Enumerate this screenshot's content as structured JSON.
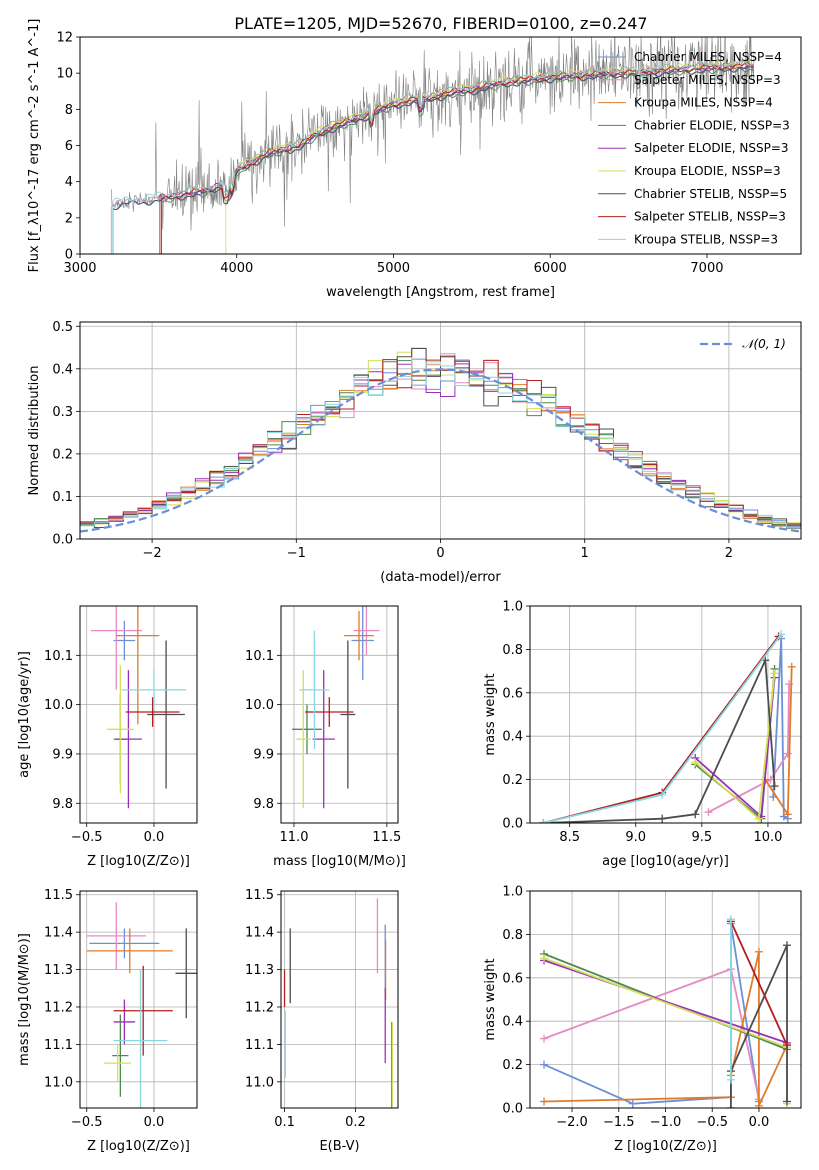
{
  "title": "PLATE=1205, MJD=52670, FIBERID=0100, z=0.247",
  "colors": {
    "Chabrier MILES": "#6d8fd6",
    "Salpeter MILES": "#e68ac3",
    "Kroupa MILES": "#e07b2c",
    "Chabrier ELODIE": "#4e8a4e",
    "Salpeter ELODIE": "#9b30b8",
    "Kroupa ELODIE": "#d4e05a",
    "Chabrier STELIB": "#4d4d4d",
    "Salpeter STELIB": "#b21e1e",
    "Kroupa STELIB": "#88d8e0",
    "normal": "#6a8fd8",
    "data_spectrum": "#808080"
  },
  "chart_data": [
    {
      "type": "line",
      "id": "spectrum",
      "xlabel": "wavelength [Angstrom, rest frame]",
      "ylabel": "Flux [f_λ10^-17 erg cm^-2 s^-1 A^-1]",
      "xlim": [
        3000,
        7600
      ],
      "ylim": [
        0,
        12
      ],
      "xticks": [
        "3000",
        "4000",
        "5000",
        "6000",
        "7000"
      ],
      "yticks": [
        "0",
        "2",
        "4",
        "6",
        "8",
        "10",
        "12"
      ],
      "grid": false,
      "legend_position": "top-right",
      "legend": [
        "Chabrier MILES, NSSP=4",
        "Salpeter MILES, NSSP=3",
        "Kroupa MILES, NSSP=4",
        "Chabrier ELODIE, NSSP=3",
        "Salpeter ELODIE, NSSP=3",
        "Kroupa ELODIE, NSSP=3",
        "Chabrier STELIB, NSSP=5",
        "Salpeter STELIB, NSSP=3",
        "Kroupa STELIB, NSSP=3"
      ],
      "model_continuum": {
        "x": [
          3200,
          3300,
          3400,
          3500,
          3600,
          3700,
          3800,
          3900,
          3950,
          4000,
          4100,
          4200,
          4300,
          4400,
          4500,
          4600,
          4700,
          4800,
          4900,
          5000,
          5100,
          5200,
          5300,
          5400,
          5500,
          5600,
          5700,
          5800,
          5900,
          6000,
          6200,
          6400,
          6600,
          6800,
          7000,
          7200,
          7300
        ],
        "y": [
          2.7,
          2.9,
          3.0,
          3.1,
          3.2,
          3.4,
          3.5,
          3.8,
          3.6,
          4.6,
          5.1,
          5.6,
          5.8,
          6.0,
          6.6,
          7.0,
          7.3,
          7.6,
          8.0,
          8.3,
          8.5,
          8.6,
          8.8,
          9.0,
          9.1,
          9.3,
          9.5,
          9.6,
          9.7,
          9.8,
          9.9,
          10.0,
          10.1,
          10.2,
          10.3,
          10.4,
          10.4
        ]
      }
    },
    {
      "type": "line",
      "id": "residuals",
      "xlabel": "(data-model)/error",
      "ylabel": "Normed distribution",
      "xlim": [
        -2.5,
        2.5
      ],
      "ylim": [
        0,
        0.51
      ],
      "xticks": [
        "−2",
        "−1",
        "0",
        "1",
        "2"
      ],
      "yticks": [
        "0.0",
        "0.1",
        "0.2",
        "0.3",
        "0.4",
        "0.5"
      ],
      "grid": true,
      "legend_position": "top-right",
      "legend": [
        "𝒩(0, 1)"
      ]
    },
    {
      "type": "scatter",
      "id": "age-vs-z",
      "xlabel": "Z [log10(Z/Z⊙)]",
      "ylabel": "age [log10(age/yr)]",
      "xlim": [
        -0.55,
        0.32
      ],
      "ylim": [
        9.76,
        10.2
      ],
      "xticks": [
        "−0.5",
        "0.0"
      ],
      "yticks": [
        "9.8",
        "9.9",
        "10.0",
        "10.1"
      ],
      "grid": true,
      "points": [
        {
          "series": "Chabrier MILES",
          "x": -0.22,
          "xerr": 0.08,
          "y": 10.13,
          "yerr": 0.04
        },
        {
          "series": "Salpeter MILES",
          "x": -0.28,
          "xerr": 0.19,
          "y": 10.15,
          "yerr": 0.12
        },
        {
          "series": "Kroupa MILES",
          "x": -0.12,
          "xerr": 0.16,
          "y": 10.14,
          "yerr": 0.18
        },
        {
          "series": "Chabrier ELODIE",
          "x": -0.25,
          "xerr": 0.05,
          "y": 9.93,
          "yerr": 0.09
        },
        {
          "series": "Salpeter ELODIE",
          "x": -0.19,
          "xerr": 0.1,
          "y": 9.93,
          "yerr": 0.14
        },
        {
          "series": "Kroupa ELODIE",
          "x": -0.25,
          "xerr": 0.1,
          "y": 9.95,
          "yerr": 0.13
        },
        {
          "series": "Chabrier STELIB",
          "x": 0.09,
          "xerr": 0.14,
          "y": 9.98,
          "yerr": 0.15
        },
        {
          "series": "Salpeter STELIB",
          "x": -0.01,
          "xerr": 0.2,
          "y": 9.985,
          "yerr": 0.03
        },
        {
          "series": "Kroupa STELIB",
          "x": 0.0,
          "xerr": 0.24,
          "y": 10.03,
          "yerr": 0.04
        }
      ]
    },
    {
      "type": "scatter",
      "id": "age-vs-mass",
      "xlabel": "mass [log10(M/M⊙)]",
      "ylabel": "",
      "xlim": [
        10.93,
        11.56
      ],
      "ylim": [
        9.76,
        10.2
      ],
      "xticks": [
        "11.0",
        "11.5"
      ],
      "yticks": [
        "9.8",
        "9.9",
        "10.0",
        "10.1"
      ],
      "grid": true,
      "points": [
        {
          "series": "Chabrier MILES",
          "x": 11.37,
          "xerr": 0.06,
          "y": 10.13,
          "yerr": 0.08
        },
        {
          "series": "Salpeter MILES",
          "x": 11.39,
          "xerr": 0.07,
          "y": 10.15,
          "yerr": 0.05
        },
        {
          "series": "Kroupa MILES",
          "x": 11.35,
          "xerr": 0.08,
          "y": 10.14,
          "yerr": 0.05
        },
        {
          "series": "Chabrier ELODIE",
          "x": 11.07,
          "xerr": 0.08,
          "y": 9.95,
          "yerr": 0.05
        },
        {
          "series": "Salpeter ELODIE",
          "x": 11.16,
          "xerr": 0.06,
          "y": 9.93,
          "yerr": 0.14
        },
        {
          "series": "Kroupa ELODIE",
          "x": 11.05,
          "xerr": 0.04,
          "y": 9.93,
          "yerr": 0.14
        },
        {
          "series": "Chabrier STELIB",
          "x": 11.29,
          "xerr": 0.04,
          "y": 9.98,
          "yerr": 0.15
        },
        {
          "series": "Salpeter STELIB",
          "x": 11.19,
          "xerr": 0.13,
          "y": 9.985,
          "yerr": 0.03
        },
        {
          "series": "Kroupa STELIB",
          "x": 11.11,
          "xerr": 0.08,
          "y": 10.03,
          "yerr": 0.12
        }
      ]
    },
    {
      "type": "line",
      "id": "weight-vs-age",
      "xlabel": "age [log10(age/yr)]",
      "ylabel": "mass weight",
      "xlim": [
        8.2,
        10.25
      ],
      "ylim": [
        0,
        1
      ],
      "xticks": [
        "8.5",
        "9.0",
        "9.5",
        "10.0"
      ],
      "yticks": [
        "0.0",
        "0.2",
        "0.4",
        "0.6",
        "0.8",
        "1.0"
      ],
      "grid": true,
      "series": [
        {
          "name": "Chabrier MILES",
          "x": [
            10.04,
            10.1,
            10.12,
            10.15
          ],
          "y": [
            0.12,
            0.85,
            0.03,
            0.02
          ]
        },
        {
          "name": "Salpeter MILES",
          "x": [
            9.55,
            10.02,
            10.15,
            10.16
          ],
          "y": [
            0.05,
            0.2,
            0.32,
            0.64
          ]
        },
        {
          "name": "Kroupa MILES",
          "x": [
            9.98,
            10.15,
            10.18
          ],
          "y": [
            0.2,
            0.04,
            0.72
          ]
        },
        {
          "name": "Chabrier ELODIE",
          "x": [
            9.45,
            9.95,
            10.05
          ],
          "y": [
            0.27,
            0.02,
            0.71
          ]
        },
        {
          "name": "Salpeter ELODIE",
          "x": [
            9.45,
            9.95,
            10.05
          ],
          "y": [
            0.3,
            0.03,
            0.67
          ]
        },
        {
          "name": "Kroupa ELODIE",
          "x": [
            9.45,
            9.93,
            10.05
          ],
          "y": [
            0.28,
            0.02,
            0.69
          ]
        },
        {
          "name": "Chabrier STELIB",
          "x": [
            8.3,
            9.2,
            9.45,
            9.98,
            10.05
          ],
          "y": [
            0.0,
            0.02,
            0.04,
            0.75,
            0.17
          ]
        },
        {
          "name": "Salpeter STELIB",
          "x": [
            8.3,
            9.2,
            10.08
          ],
          "y": [
            0.0,
            0.14,
            0.86
          ]
        },
        {
          "name": "Kroupa STELIB",
          "x": [
            8.3,
            9.2,
            10.1
          ],
          "y": [
            0.0,
            0.13,
            0.87
          ]
        }
      ]
    },
    {
      "type": "scatter",
      "id": "mass-vs-z",
      "xlabel": "Z [log10(Z/Z⊙)]",
      "ylabel": "mass [log10(M/M⊙)]",
      "xlim": [
        -0.55,
        0.32
      ],
      "ylim": [
        10.93,
        11.51
      ],
      "xticks": [
        "−0.5",
        "0.0"
      ],
      "yticks": [
        "11.0",
        "11.1",
        "11.2",
        "11.3",
        "11.4",
        "11.5"
      ],
      "grid": true,
      "points": [
        {
          "series": "Chabrier MILES",
          "x": -0.22,
          "xerr": 0.26,
          "y": 11.37,
          "yerr": 0.04
        },
        {
          "series": "Salpeter MILES",
          "x": -0.28,
          "xerr": 0.22,
          "y": 11.39,
          "yerr": 0.09
        },
        {
          "series": "Kroupa MILES",
          "x": -0.18,
          "xerr": 0.32,
          "y": 11.35,
          "yerr": 0.06
        },
        {
          "series": "Chabrier ELODIE",
          "x": -0.25,
          "xerr": 0.06,
          "y": 11.07,
          "yerr": 0.11
        },
        {
          "series": "Salpeter ELODIE",
          "x": -0.22,
          "xerr": 0.08,
          "y": 11.16,
          "yerr": 0.06
        },
        {
          "series": "Kroupa ELODIE",
          "x": -0.27,
          "xerr": 0.1,
          "y": 11.05,
          "yerr": 0.05
        },
        {
          "series": "Chabrier STELIB",
          "x": 0.24,
          "xerr": 0.08,
          "y": 11.29,
          "yerr": 0.12
        },
        {
          "series": "Salpeter STELIB",
          "x": -0.08,
          "xerr": 0.22,
          "y": 11.19,
          "yerr": 0.12
        },
        {
          "series": "Kroupa STELIB",
          "x": -0.1,
          "xerr": 0.2,
          "y": 11.11,
          "yerr": 0.19
        }
      ]
    },
    {
      "type": "scatter",
      "id": "mass-vs-ebv",
      "xlabel": "E(B-V)",
      "ylabel": "",
      "xlim": [
        0.095,
        0.26
      ],
      "ylim": [
        10.93,
        11.51
      ],
      "xticks": [
        "0.1",
        "0.2"
      ],
      "yticks": [
        "11.0",
        "11.1",
        "11.2",
        "11.3",
        "11.4",
        "11.5"
      ],
      "grid": true,
      "points": [
        {
          "series": "Chabrier MILES",
          "x": 0.242,
          "yerr": 0.09,
          "y": 11.33
        },
        {
          "series": "Salpeter MILES",
          "x": 0.231,
          "yerr": 0.1,
          "y": 11.39
        },
        {
          "series": "Kroupa MILES",
          "x": 0.2425,
          "yerr": 0.08,
          "y": 11.3
        },
        {
          "series": "Chabrier ELODIE",
          "x": 0.251,
          "yerr": 0.13,
          "y": 11.03
        },
        {
          "series": "Salpeter ELODIE",
          "x": 0.242,
          "yerr": 0.1,
          "y": 11.15
        },
        {
          "series": "Kroupa ELODIE",
          "x": 0.252,
          "yerr": 0.12,
          "y": 11.04
        },
        {
          "series": "Chabrier STELIB",
          "x": 0.108,
          "yerr": 0.1,
          "y": 11.31
        },
        {
          "series": "Salpeter STELIB",
          "x": 0.1,
          "yerr": 0.05,
          "y": 11.25
        },
        {
          "series": "Kroupa STELIB",
          "x": 0.101,
          "yerr": 0.09,
          "y": 11.1
        }
      ]
    },
    {
      "type": "line",
      "id": "weight-vs-z",
      "xlabel": "Z [log10(Z/Z⊙)]",
      "ylabel": "mass weight",
      "xlim": [
        -2.45,
        0.45
      ],
      "ylim": [
        0,
        1
      ],
      "xticks": [
        "−2.0",
        "−1.5",
        "−1.0",
        "−0.5",
        "0.0"
      ],
      "yticks": [
        "0.0",
        "0.2",
        "0.4",
        "0.6",
        "0.8",
        "1.0"
      ],
      "grid": true,
      "series": [
        {
          "name": "Chabrier MILES",
          "x": [
            -2.3,
            -1.35,
            -0.3,
            -0.3,
            0.0
          ],
          "y": [
            0.2,
            0.02,
            0.05,
            0.85,
            0.03
          ]
        },
        {
          "name": "Salpeter MILES",
          "x": [
            -2.3,
            -0.3,
            0.0
          ],
          "y": [
            0.32,
            0.64,
            0.04
          ]
        },
        {
          "name": "Kroupa MILES",
          "x": [
            -2.3,
            -0.3,
            -0.3,
            0.0,
            0.0,
            0.3
          ],
          "y": [
            0.03,
            0.05,
            0.15,
            0.72,
            0.01,
            0.29
          ]
        },
        {
          "name": "Chabrier ELODIE",
          "x": [
            -2.3,
            0.3
          ],
          "y": [
            0.71,
            0.27
          ]
        },
        {
          "name": "Salpeter ELODIE",
          "x": [
            -2.3,
            0.3
          ],
          "y": [
            0.68,
            0.3
          ]
        },
        {
          "name": "Kroupa ELODIE",
          "x": [
            -2.3,
            0.3,
            0.3
          ],
          "y": [
            0.69,
            0.28,
            0.02
          ]
        },
        {
          "name": "Chabrier STELIB",
          "x": [
            -0.3,
            -0.3,
            0.3,
            0.3
          ],
          "y": [
            0.0,
            0.17,
            0.75,
            0.03
          ]
        },
        {
          "name": "Salpeter STELIB",
          "x": [
            -0.3,
            0.3
          ],
          "y": [
            0.86,
            0.29
          ]
        },
        {
          "name": "Kroupa STELIB",
          "x": [
            -0.3,
            -0.3
          ],
          "y": [
            0.87,
            0.13
          ]
        }
      ]
    }
  ]
}
